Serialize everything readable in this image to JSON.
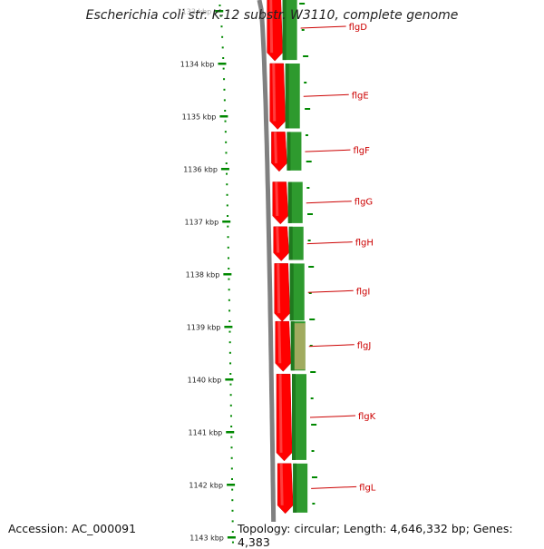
{
  "title": "Escherichia coli str. K-12 substr. W3110, complete genome",
  "footer": {
    "accession": "Accession: AC_000091",
    "topology": "Topology: circular; Length: 4,646,332 bp; Genes: 4,383"
  },
  "colors": {
    "forward_cds": "#ff0000",
    "gene_track": "#2e9a2e",
    "backbone": "#808080",
    "ticks": "#008800",
    "labels": "#cc0000",
    "highlight": "#c8b070"
  },
  "axis": {
    "unit": "kbp",
    "ticks": [
      1133,
      1134,
      1135,
      1136,
      1137,
      1138,
      1139,
      1140,
      1141,
      1142,
      1143
    ],
    "tick_labels": [
      "1133 kbp",
      "1134 kbp",
      "1135 kbp",
      "1136 kbp",
      "1137 kbp",
      "1138 kbp",
      "1139 kbp",
      "1140 kbp",
      "1141 kbp",
      "1142 kbp",
      "1143 kbp"
    ]
  },
  "genes": [
    {
      "name": "flgD",
      "start_kbp": 1132.6,
      "end_kbp": 1133.95
    },
    {
      "name": "flgE",
      "start_kbp": 1134.0,
      "end_kbp": 1135.25
    },
    {
      "name": "flgF",
      "start_kbp": 1135.3,
      "end_kbp": 1136.05
    },
    {
      "name": "flgG",
      "start_kbp": 1136.25,
      "end_kbp": 1137.05
    },
    {
      "name": "flgH",
      "start_kbp": 1137.1,
      "end_kbp": 1137.75
    },
    {
      "name": "flgI",
      "start_kbp": 1137.8,
      "end_kbp": 1138.9
    },
    {
      "name": "flgJ",
      "start_kbp": 1138.9,
      "end_kbp": 1139.85,
      "highlighted": true
    },
    {
      "name": "flgK",
      "start_kbp": 1139.9,
      "end_kbp": 1141.55
    },
    {
      "name": "flgL",
      "start_kbp": 1141.6,
      "end_kbp": 1142.55
    }
  ]
}
